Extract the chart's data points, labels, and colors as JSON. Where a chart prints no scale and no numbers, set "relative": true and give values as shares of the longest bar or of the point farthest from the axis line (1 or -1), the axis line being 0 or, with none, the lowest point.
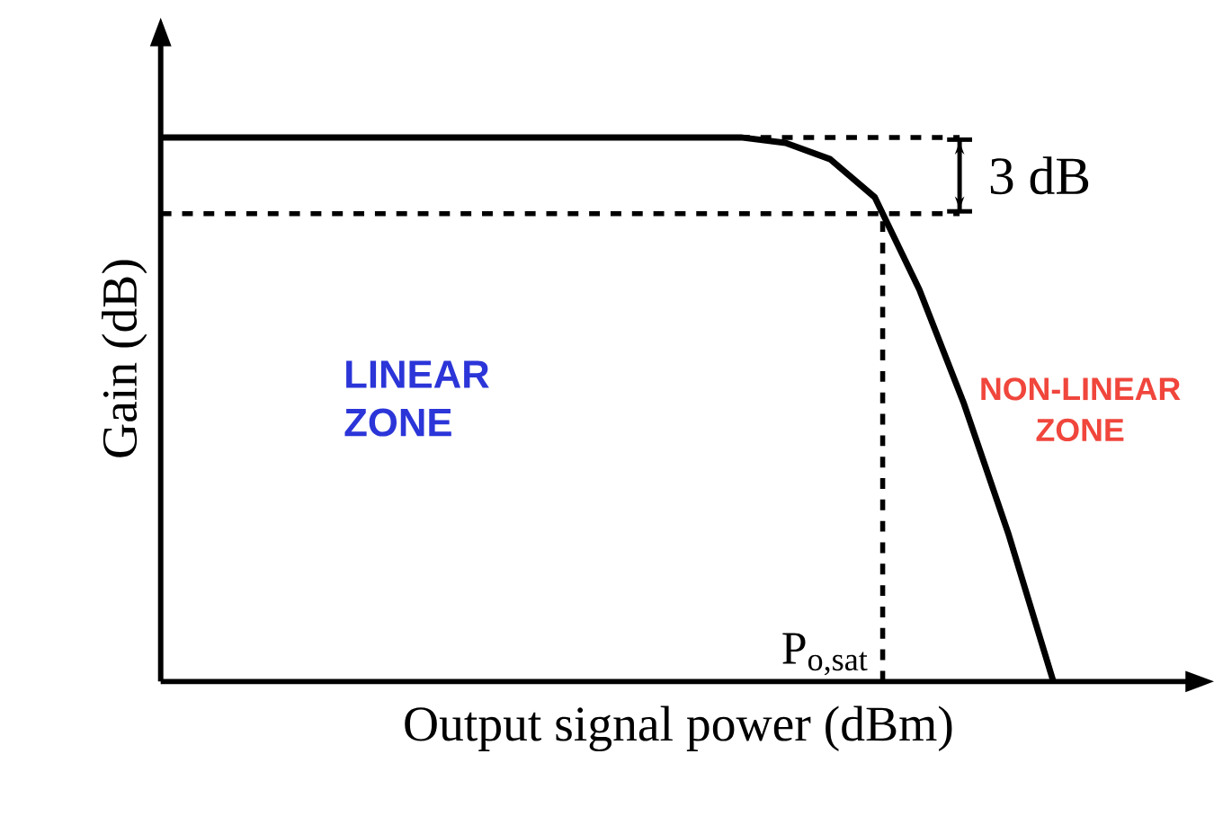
{
  "chart_data": {
    "type": "line",
    "relative": true,
    "xlabel": "Output signal power (dBm)",
    "ylabel": "Gain (dB)",
    "categories": [
      null,
      null,
      null,
      null,
      null,
      null,
      null,
      null,
      null,
      null,
      null,
      null,
      null,
      null,
      null,
      null,
      null,
      null,
      null,
      null,
      null
    ],
    "series": [
      {
        "color": "#000000",
        "values": [
          1,
          1,
          1,
          1,
          1,
          1,
          1,
          1,
          1,
          1,
          1,
          1,
          1,
          1,
          0.99,
          0.96,
          0.89,
          0.72,
          0.51,
          0.27,
          0
        ]
      }
    ],
    "ref_lines": [
      {
        "axis": "y",
        "value": 1,
        "line_style": "dashed",
        "color": "#000000"
      },
      {
        "axis": "y",
        "value": 0.86,
        "line_style": "dashed",
        "color": "#000000"
      }
    ],
    "annotations": [
      "3 dB",
      "P$_{o,sat}$",
      "LINEAR ZONE",
      "NON-LINEAR ZONE"
    ]
  }
}
